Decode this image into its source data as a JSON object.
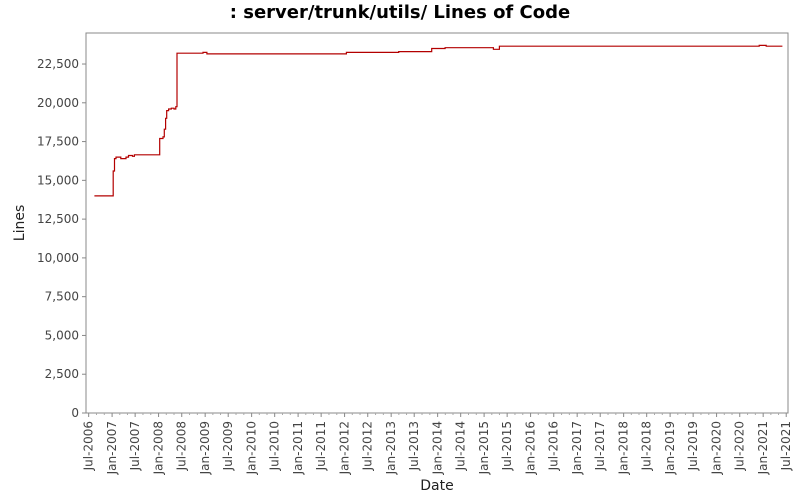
{
  "chart_data": {
    "type": "line",
    "title": ": server/trunk/utils/ Lines of Code",
    "xlabel": "Date",
    "ylabel": "Lines",
    "ylim": [
      0,
      24500
    ],
    "xlim": [
      "2006-06-10",
      "2021-07-15"
    ],
    "grid": false,
    "legend": "none",
    "line_color": "#b30000",
    "y_ticks": [
      0,
      2500,
      5000,
      7500,
      10000,
      12500,
      15000,
      17500,
      20000,
      22500
    ],
    "y_tick_labels": [
      "0",
      "2,500",
      "5,000",
      "7,500",
      "10,000",
      "12,500",
      "15,000",
      "17,500",
      "20,000",
      "22,500"
    ],
    "x_ticks": [
      "2006-07-01",
      "2007-01-01",
      "2007-07-01",
      "2008-01-01",
      "2008-07-01",
      "2009-01-01",
      "2009-07-01",
      "2010-01-01",
      "2010-07-01",
      "2011-01-01",
      "2011-07-01",
      "2012-01-01",
      "2012-07-01",
      "2013-01-01",
      "2013-07-01",
      "2014-01-01",
      "2014-07-01",
      "2015-01-01",
      "2015-07-01",
      "2016-01-01",
      "2016-07-01",
      "2017-01-01",
      "2017-07-01",
      "2018-01-01",
      "2018-07-01",
      "2019-01-01",
      "2019-07-01",
      "2020-01-01",
      "2020-07-01",
      "2021-01-01",
      "2021-07-01"
    ],
    "x_tick_labels": [
      "Jul-2006",
      "Jan-2007",
      "Jul-2007",
      "Jan-2008",
      "Jul-2008",
      "Jan-2009",
      "Jul-2009",
      "Jan-2010",
      "Jul-2010",
      "Jan-2011",
      "Jul-2011",
      "Jan-2012",
      "Jul-2012",
      "Jan-2013",
      "Jul-2013",
      "Jan-2014",
      "Jul-2014",
      "Jan-2015",
      "Jul-2015",
      "Jan-2016",
      "Jul-2016",
      "Jan-2017",
      "Jul-2017",
      "Jan-2018",
      "Jul-2018",
      "Jan-2019",
      "Jul-2019",
      "Jan-2020",
      "Jul-2020",
      "Jan-2021",
      "Jul-2021"
    ],
    "series": [
      {
        "name": "",
        "step": true,
        "points": [
          [
            "2006-08-15",
            14000
          ],
          [
            "2007-01-05",
            14000
          ],
          [
            "2007-01-10",
            15600
          ],
          [
            "2007-01-20",
            16400
          ],
          [
            "2007-02-01",
            16500
          ],
          [
            "2007-03-10",
            16400
          ],
          [
            "2007-04-20",
            16500
          ],
          [
            "2007-05-10",
            16600
          ],
          [
            "2007-06-10",
            16550
          ],
          [
            "2007-06-25",
            16650
          ],
          [
            "2008-01-01",
            16650
          ],
          [
            "2008-01-10",
            17700
          ],
          [
            "2008-02-05",
            17800
          ],
          [
            "2008-02-15",
            18300
          ],
          [
            "2008-02-25",
            19000
          ],
          [
            "2008-03-05",
            19500
          ],
          [
            "2008-03-20",
            19600
          ],
          [
            "2008-04-10",
            19650
          ],
          [
            "2008-05-01",
            19600
          ],
          [
            "2008-05-15",
            19750
          ],
          [
            "2008-05-25",
            23200
          ],
          [
            "2008-12-15",
            23250
          ],
          [
            "2009-01-15",
            23150
          ],
          [
            "2012-01-15",
            23250
          ],
          [
            "2013-01-01",
            23250
          ],
          [
            "2013-03-01",
            23300
          ],
          [
            "2013-10-01",
            23300
          ],
          [
            "2013-11-15",
            23500
          ],
          [
            "2014-03-01",
            23550
          ],
          [
            "2015-03-15",
            23450
          ],
          [
            "2015-05-01",
            23650
          ],
          [
            "2020-11-01",
            23650
          ],
          [
            "2020-12-01",
            23700
          ],
          [
            "2021-01-25",
            23650
          ],
          [
            "2021-06-01",
            23650
          ]
        ]
      }
    ]
  }
}
